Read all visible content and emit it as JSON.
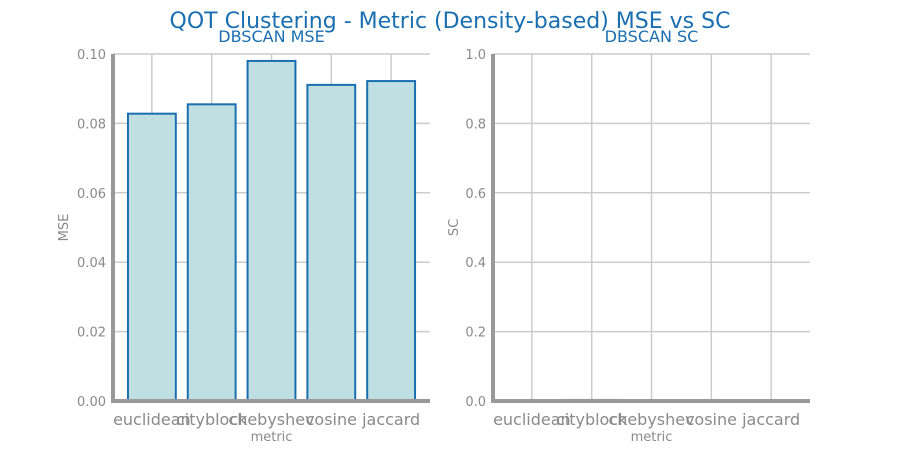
{
  "title": "QOT Clustering - Metric (Density-based) MSE vs SC",
  "colors": {
    "title": "#1a6fb0",
    "bar_fill": "#bfdfe3",
    "bar_edge": "#1a6fb0",
    "grid": "#cccccc",
    "axis": "#999999",
    "tick_text": "#8a8a8a"
  },
  "chart_data": [
    {
      "type": "bar",
      "title": "DBSCAN MSE",
      "xlabel": "metric",
      "ylabel": "MSE",
      "categories": [
        "euclidean",
        "cityblock",
        "chebyshev",
        "cosine",
        "jaccard"
      ],
      "values": [
        0.0828,
        0.0855,
        0.098,
        0.0911,
        0.0922
      ],
      "ylim": [
        0,
        0.1
      ],
      "yticks": [
        "0.00",
        "0.02",
        "0.04",
        "0.06",
        "0.08",
        "0.10"
      ],
      "grid": true
    },
    {
      "type": "bar",
      "title": "DBSCAN SC",
      "xlabel": "metric",
      "ylabel": "SC",
      "categories": [
        "euclidean",
        "cityblock",
        "chebyshev",
        "cosine",
        "jaccard"
      ],
      "values": [
        0.0,
        0.003,
        0.0,
        0.0,
        0.0
      ],
      "ylim": [
        0,
        1.0
      ],
      "yticks": [
        "0.0",
        "0.2",
        "0.4",
        "0.6",
        "0.8",
        "1.0"
      ],
      "grid": true
    }
  ]
}
